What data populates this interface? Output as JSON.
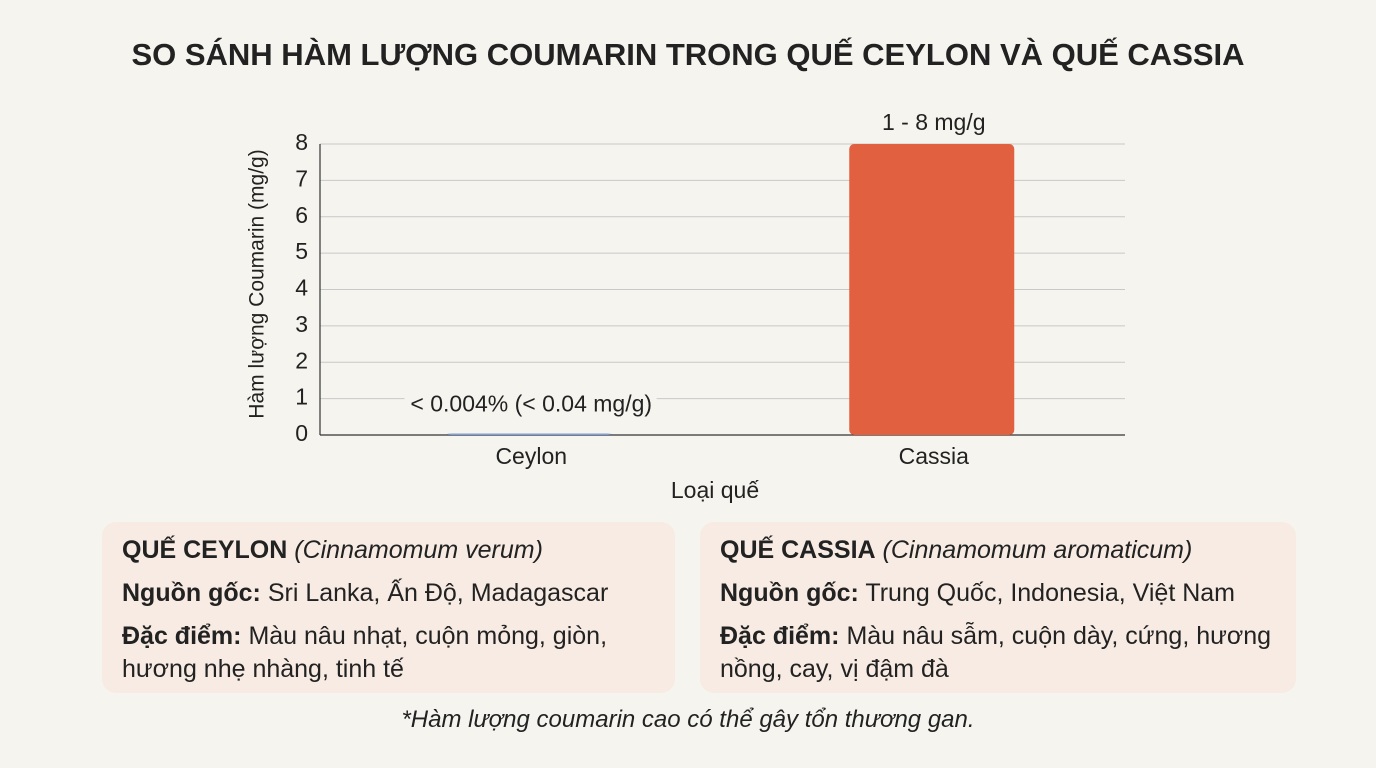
{
  "chart_data": {
    "type": "bar",
    "title": "SO SÁNH HÀM LƯỢNG COUMARIN TRONG QUẾ CEYLON VÀ QUẾ CASSIA",
    "y_label": "Hàm lượng Coumarin (mg/g)",
    "x_label": "Loại quế",
    "categories": [
      "Ceylon",
      "Cassia"
    ],
    "values": [
      0.04,
      8
    ],
    "value_labels": [
      "< 0.004% (< 0.04 mg/g)",
      "1 - 8 mg/g"
    ],
    "colors": [
      "#7f9fd8",
      "#e0603f"
    ],
    "ylim": [
      0,
      8
    ],
    "yticks": [
      0,
      1,
      2,
      3,
      4,
      5,
      6,
      7,
      8
    ],
    "grid": true
  },
  "cards": [
    {
      "name": "QUẾ CEYLON",
      "scientific_name": "(Cinnamomum verum)",
      "origin_label": "Nguồn gốc:",
      "origin": "Sri Lanka, Ấn Độ, Madagascar",
      "feature_label": "Đặc điểm:",
      "feature": "Màu nâu nhạt, cuộn mỏng, giòn, hương nhẹ nhàng, tinh tế"
    },
    {
      "name": "QUẾ CASSIA",
      "scientific_name": "(Cinnamomum aromaticum)",
      "origin_label": "Nguồn gốc:",
      "origin": "Trung Quốc, Indonesia, Việt Nam",
      "feature_label": "Đặc điểm:",
      "feature": "Màu nâu sẫm, cuộn dày, cứng, hương nồng, cay, vị đậm đà"
    }
  ],
  "footnote": "*Hàm lượng coumarin cao có thể gây tổn thương gan."
}
